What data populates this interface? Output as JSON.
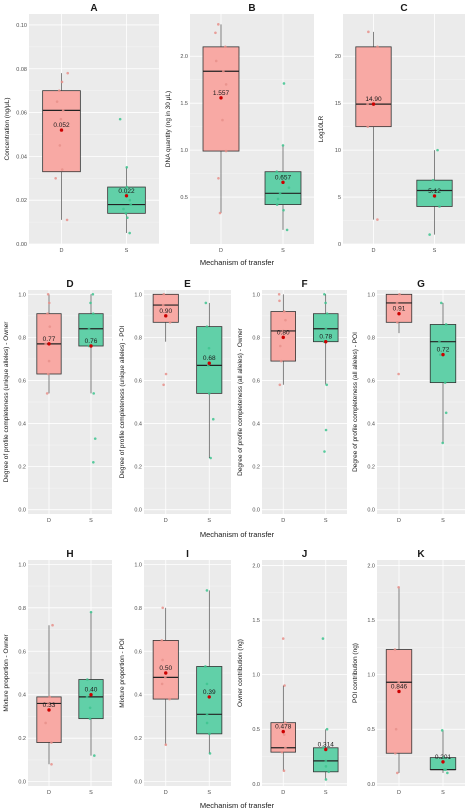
{
  "colors": {
    "D": "#f8a9a4",
    "S": "#61d0a8",
    "D_point": "#e8918b",
    "S_point": "#3ec48f",
    "mean_point": "#cc0000",
    "panel_bg": "#ebebeb"
  },
  "rows": [
    {
      "xlabel": "Mechanism of transfer"
    },
    {
      "xlabel": "Mechanism of transfer"
    },
    {
      "xlabel": "Mechanism of transfer"
    }
  ],
  "chart_data": [
    {
      "type": "box",
      "panel": "A",
      "title": "A",
      "ylabel": "Concentration (ng/μL)",
      "categories": [
        "D",
        "S"
      ],
      "ylim": [
        0,
        0.105
      ],
      "yticks": [
        0,
        0.02,
        0.04,
        0.06,
        0.08,
        0.1
      ],
      "ytick_labels": [
        "0.00",
        "0.02",
        "0.04",
        "0.06",
        "0.08",
        "0.10"
      ],
      "boxes": [
        {
          "name": "D",
          "min": 0.011,
          "q1": 0.033,
          "median": 0.061,
          "q3": 0.07,
          "max": 0.078,
          "mean": 0.052,
          "mean_label": "0.052",
          "points": [
            0.011,
            0.03,
            0.034,
            0.045,
            0.057,
            0.061,
            0.065,
            0.07,
            0.074,
            0.078
          ]
        },
        {
          "name": "S",
          "min": 0.005,
          "q1": 0.014,
          "median": 0.018,
          "q3": 0.026,
          "max": 0.035,
          "mean": 0.022,
          "mean_label": "0.022",
          "points": [
            0.005,
            0.012,
            0.014,
            0.016,
            0.018,
            0.02,
            0.023,
            0.026,
            0.035,
            0.057
          ]
        }
      ]
    },
    {
      "type": "box",
      "panel": "B",
      "title": "B",
      "ylabel": "DNA quantity (ng in 30 μL)",
      "categories": [
        "D",
        "S"
      ],
      "ylim": [
        0,
        2.45
      ],
      "yticks": [
        0.5,
        1.0,
        1.5,
        2.0
      ],
      "ytick_labels": [
        "0.5",
        "1.0",
        "1.5",
        "2.0"
      ],
      "boxes": [
        {
          "name": "D",
          "min": 0.33,
          "q1": 0.99,
          "median": 1.84,
          "q3": 2.1,
          "max": 2.34,
          "mean": 1.557,
          "mean_label": "1.557",
          "points": [
            0.33,
            0.7,
            0.99,
            1.32,
            1.7,
            1.84,
            1.95,
            2.1,
            2.25,
            2.34
          ]
        },
        {
          "name": "S",
          "min": 0.15,
          "q1": 0.42,
          "median": 0.54,
          "q3": 0.77,
          "max": 1.05,
          "mean": 0.657,
          "mean_label": "0.657",
          "points": [
            0.15,
            0.36,
            0.42,
            0.48,
            0.54,
            0.6,
            0.72,
            0.77,
            1.05,
            1.71
          ]
        }
      ]
    },
    {
      "type": "box",
      "panel": "C",
      "title": "C",
      "ylabel": "Log10LR",
      "categories": [
        "D",
        "S"
      ],
      "ylim": [
        0,
        24.5
      ],
      "yticks": [
        0,
        5,
        10,
        15,
        20
      ],
      "ytick_labels": [
        "0",
        "5",
        "10",
        "15",
        "20"
      ],
      "boxes": [
        {
          "name": "D",
          "min": 2.6,
          "q1": 12.5,
          "median": 14.9,
          "q3": 21.0,
          "max": 22.6,
          "mean": 14.9,
          "mean_label": "14.90",
          "points": [
            2.6,
            12.5,
            14.9,
            21.0,
            22.6
          ]
        },
        {
          "name": "S",
          "min": 1.0,
          "q1": 4.0,
          "median": 5.7,
          "q3": 6.8,
          "max": 10.0,
          "mean": 5.12,
          "mean_label": "5.12",
          "points": [
            1.0,
            4.0,
            5.0,
            5.7,
            6.8,
            10.0
          ]
        }
      ]
    },
    {
      "type": "box",
      "panel": "D",
      "title": "D",
      "ylabel": "Degree of profile completeness (unique alleles) - Owner",
      "categories": [
        "D",
        "S"
      ],
      "ylim": [
        -0.02,
        1.02
      ],
      "yticks": [
        0,
        0.2,
        0.4,
        0.6,
        0.8,
        1.0
      ],
      "ytick_labels": [
        "0.0",
        "0.2",
        "0.4",
        "0.6",
        "0.8",
        "1.0"
      ],
      "boxes": [
        {
          "name": "D",
          "min": 0.54,
          "q1": 0.63,
          "median": 0.77,
          "q3": 0.91,
          "max": 1.0,
          "mean": 0.77,
          "mean_label": "0.77",
          "points": [
            0.54,
            0.63,
            0.69,
            0.77,
            0.85,
            0.91,
            0.96,
            1.0
          ]
        },
        {
          "name": "S",
          "min": 0.54,
          "q1": 0.76,
          "median": 0.84,
          "q3": 0.91,
          "max": 1.0,
          "mean": 0.76,
          "mean_label": "0.76",
          "points": [
            0.22,
            0.33,
            0.54,
            0.76,
            0.84,
            0.91,
            0.96,
            1.0
          ]
        }
      ]
    },
    {
      "type": "box",
      "panel": "E",
      "title": "E",
      "ylabel": "Degree of profile completeness (unique alleles) - POI",
      "categories": [
        "D",
        "S"
      ],
      "ylim": [
        -0.02,
        1.02
      ],
      "yticks": [
        0,
        0.2,
        0.4,
        0.6,
        0.8,
        1.0
      ],
      "ytick_labels": [
        "0.0",
        "0.2",
        "0.4",
        "0.6",
        "0.8",
        "1.0"
      ],
      "boxes": [
        {
          "name": "D",
          "min": 0.78,
          "q1": 0.87,
          "median": 0.95,
          "q3": 1.0,
          "max": 1.0,
          "mean": 0.9,
          "mean_label": "0.90",
          "points": [
            0.58,
            0.63,
            0.87,
            0.95,
            1.0
          ]
        },
        {
          "name": "S",
          "min": 0.24,
          "q1": 0.54,
          "median": 0.67,
          "q3": 0.85,
          "max": 0.96,
          "mean": 0.68,
          "mean_label": "0.68",
          "points": [
            0.24,
            0.42,
            0.54,
            0.67,
            0.75,
            0.85,
            0.96
          ]
        }
      ]
    },
    {
      "type": "box",
      "panel": "F",
      "title": "F",
      "ylabel": "Degree of profile completeness (all alleles) - Owner",
      "categories": [
        "D",
        "S"
      ],
      "ylim": [
        -0.02,
        1.02
      ],
      "yticks": [
        0,
        0.2,
        0.4,
        0.6,
        0.8,
        1.0
      ],
      "ytick_labels": [
        "0.0",
        "0.2",
        "0.4",
        "0.6",
        "0.8",
        "1.0"
      ],
      "boxes": [
        {
          "name": "D",
          "min": 0.58,
          "q1": 0.69,
          "median": 0.83,
          "q3": 0.92,
          "max": 1.0,
          "mean": 0.8,
          "mean_label": "0.80",
          "points": [
            0.58,
            0.69,
            0.76,
            0.83,
            0.88,
            0.92,
            0.97,
            1.0
          ]
        },
        {
          "name": "S",
          "min": 0.58,
          "q1": 0.78,
          "median": 0.84,
          "q3": 0.91,
          "max": 1.0,
          "mean": 0.78,
          "mean_label": "0.78",
          "points": [
            0.27,
            0.37,
            0.58,
            0.78,
            0.84,
            0.91,
            0.96,
            1.0
          ]
        }
      ]
    },
    {
      "type": "box",
      "panel": "G",
      "title": "G",
      "ylabel": "Degree of profile completeness (all alleles) - POI",
      "categories": [
        "D",
        "S"
      ],
      "ylim": [
        -0.02,
        1.02
      ],
      "yticks": [
        0,
        0.2,
        0.4,
        0.6,
        0.8,
        1.0
      ],
      "ytick_labels": [
        "0.0",
        "0.2",
        "0.4",
        "0.6",
        "0.8",
        "1.0"
      ],
      "boxes": [
        {
          "name": "D",
          "min": 0.82,
          "q1": 0.87,
          "median": 0.96,
          "q3": 1.0,
          "max": 1.0,
          "mean": 0.91,
          "mean_label": "0.91",
          "points": [
            0.63,
            0.87,
            0.96,
            1.0
          ]
        },
        {
          "name": "S",
          "min": 0.31,
          "q1": 0.59,
          "median": 0.78,
          "q3": 0.86,
          "max": 0.96,
          "mean": 0.72,
          "mean_label": "0.72",
          "points": [
            0.31,
            0.45,
            0.59,
            0.72,
            0.78,
            0.86,
            0.96
          ]
        }
      ]
    },
    {
      "type": "box",
      "panel": "H",
      "title": "H",
      "ylabel": "Mixture proportion - Owner",
      "categories": [
        "D",
        "S"
      ],
      "ylim": [
        -0.02,
        1.02
      ],
      "yticks": [
        0,
        0.2,
        0.4,
        0.6,
        0.8,
        1.0
      ],
      "ytick_labels": [
        "0.0",
        "0.2",
        "0.4",
        "0.6",
        "0.8",
        "1.0"
      ],
      "boxes": [
        {
          "name": "D",
          "min": 0.08,
          "q1": 0.18,
          "median": 0.36,
          "q3": 0.39,
          "max": 0.72,
          "mean": 0.33,
          "mean_label": "0.33",
          "points": [
            0.08,
            0.18,
            0.27,
            0.36,
            0.39,
            0.72
          ]
        },
        {
          "name": "S",
          "min": 0.12,
          "q1": 0.29,
          "median": 0.39,
          "q3": 0.47,
          "max": 0.78,
          "mean": 0.4,
          "mean_label": "0.40",
          "points": [
            0.12,
            0.29,
            0.34,
            0.39,
            0.47,
            0.78
          ]
        }
      ]
    },
    {
      "type": "box",
      "panel": "I",
      "title": "I",
      "ylabel": "Mixture proportion - POI",
      "categories": [
        "D",
        "S"
      ],
      "ylim": [
        -0.02,
        1.02
      ],
      "yticks": [
        0,
        0.2,
        0.4,
        0.6,
        0.8,
        1.0
      ],
      "ytick_labels": [
        "0.0",
        "0.2",
        "0.4",
        "0.6",
        "0.8",
        "1.0"
      ],
      "boxes": [
        {
          "name": "D",
          "min": 0.17,
          "q1": 0.38,
          "median": 0.48,
          "q3": 0.65,
          "max": 0.8,
          "mean": 0.5,
          "mean_label": "0.50",
          "points": [
            0.17,
            0.38,
            0.45,
            0.48,
            0.56,
            0.65,
            0.8
          ]
        },
        {
          "name": "S",
          "min": 0.13,
          "q1": 0.22,
          "median": 0.31,
          "q3": 0.53,
          "max": 0.88,
          "mean": 0.39,
          "mean_label": "0.39",
          "points": [
            0.13,
            0.22,
            0.27,
            0.31,
            0.45,
            0.53,
            0.88
          ]
        }
      ]
    },
    {
      "type": "box",
      "panel": "J",
      "title": "J",
      "ylabel": "Owner contribution (ng)",
      "categories": [
        "D",
        "S"
      ],
      "ylim": [
        -0.02,
        2.05
      ],
      "yticks": [
        0,
        0.5,
        1.0,
        1.5,
        2.0
      ],
      "ytick_labels": [
        "0.0",
        "0.5",
        "1.0",
        "1.5",
        "2.0"
      ],
      "boxes": [
        {
          "name": "D",
          "min": 0.12,
          "q1": 0.29,
          "median": 0.33,
          "q3": 0.56,
          "max": 0.9,
          "mean": 0.478,
          "mean_label": "0.478",
          "points": [
            0.12,
            0.29,
            0.33,
            0.45,
            0.56,
            0.9,
            1.33
          ]
        },
        {
          "name": "S",
          "min": 0.04,
          "q1": 0.11,
          "median": 0.21,
          "q3": 0.33,
          "max": 0.5,
          "mean": 0.314,
          "mean_label": "0.314",
          "points": [
            0.04,
            0.11,
            0.16,
            0.21,
            0.33,
            0.5,
            1.33
          ]
        }
      ]
    },
    {
      "type": "box",
      "panel": "K",
      "title": "K",
      "ylabel": "POI contribution (ng)",
      "categories": [
        "D",
        "S"
      ],
      "ylim": [
        -0.02,
        2.05
      ],
      "yticks": [
        0,
        0.5,
        1.0,
        1.5,
        2.0
      ],
      "ytick_labels": [
        "0.0",
        "0.5",
        "1.0",
        "1.5",
        "2.0"
      ],
      "boxes": [
        {
          "name": "D",
          "min": 0.1,
          "q1": 0.28,
          "median": 0.93,
          "q3": 1.23,
          "max": 1.8,
          "mean": 0.846,
          "mean_label": "0.846",
          "points": [
            0.1,
            0.28,
            0.5,
            0.93,
            1.23,
            1.8
          ]
        },
        {
          "name": "S",
          "min": 0.1,
          "q1": 0.13,
          "median": 0.13,
          "q3": 0.24,
          "max": 0.49,
          "mean": 0.201,
          "mean_label": "0.201",
          "points": [
            0.1,
            0.13,
            0.13,
            0.24,
            0.49
          ]
        }
      ]
    }
  ]
}
